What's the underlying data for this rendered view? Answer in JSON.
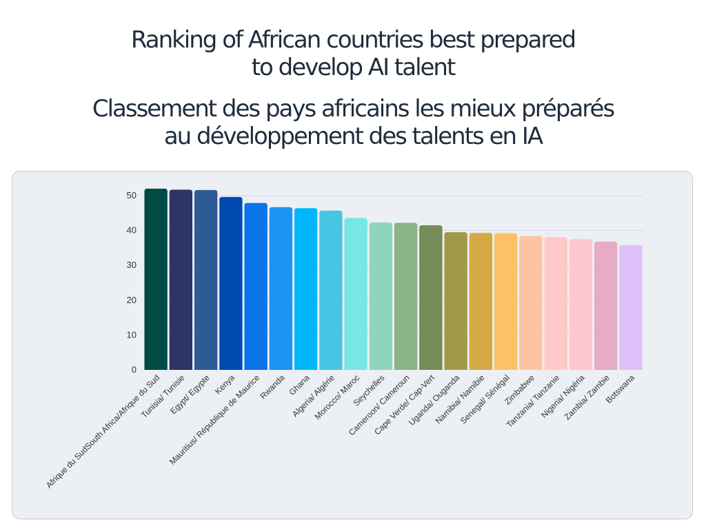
{
  "title": {
    "en_line1": "Ranking of African countries best prepared",
    "en_line2": "to develop AI talent",
    "fr_line1": "Classement des pays africains les mieux préparés",
    "fr_line2": "au développement des talents en IA"
  },
  "chart_data": {
    "type": "bar",
    "title": "Ranking of African countries best prepared to develop AI talent / Classement des pays africains les mieux préparés au développement des talents en IA",
    "xlabel": "",
    "ylabel": "",
    "ylim": [
      0,
      50
    ],
    "yticks": [
      0,
      10,
      20,
      30,
      40,
      50
    ],
    "grid": true,
    "categories": [
      "Afrique du SudSouth Africa/Afrique du Sud",
      "Tunisia/ Tunisie",
      "Egypt/ Egypte",
      "Kenya",
      "Mauritius/ République de Maurice",
      "Rwanda",
      "Ghana",
      "Algeria/ Algérie",
      "Morocco/ Maroc",
      "Seychelles",
      "Cameroon/ Cameroun",
      "Cape Verde/ Cap-Vert",
      "Uganda/ Ouganda",
      "Namibia/ Namibie",
      "Senegal/ Sénégal",
      "Zimbabwe",
      "Tanzania/ Tanzanie",
      "Nigeria/ Nigéria",
      "Zambia/ Zambie",
      "Botswana"
    ],
    "values": [
      52,
      51.7,
      51.6,
      49.6,
      47.9,
      46.7,
      46.4,
      45.7,
      43.6,
      42.3,
      42.2,
      41.5,
      39.5,
      39.3,
      39.2,
      38.4,
      38.1,
      37.5,
      36.8,
      35.8
    ],
    "colors": [
      "#004c45",
      "#2e3465",
      "#2e5b94",
      "#004bb0",
      "#0b74e8",
      "#1a94f5",
      "#00b7fb",
      "#47c6e3",
      "#76e7e5",
      "#8dd6bc",
      "#89b484",
      "#768c57",
      "#a09a46",
      "#d6a844",
      "#fbc166",
      "#ffc3a2",
      "#fec9c8",
      "#fdc8cd",
      "#e6abc5",
      "#dfbff7"
    ]
  }
}
